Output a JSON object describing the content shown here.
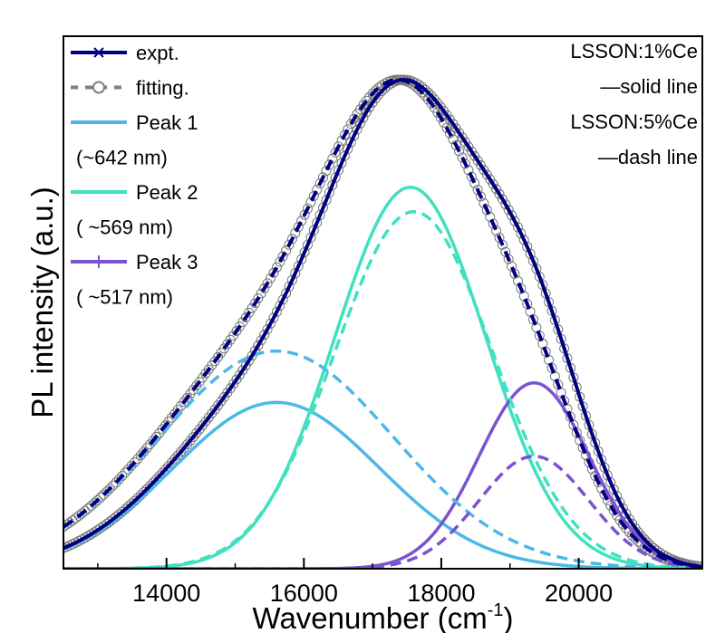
{
  "chart_data": {
    "type": "line",
    "xlabel": "Wavenumber (cm",
    "xlabel_sup": "-1",
    "xlabel_close": ")",
    "ylabel": "PL intensity (a.u.)",
    "xlim": [
      12500,
      21800
    ],
    "ylim": [
      0,
      1.0
    ],
    "x_ticks": [
      14000,
      16000,
      18000,
      20000
    ],
    "x_tick_labels": [
      "14000",
      "16000",
      "18000",
      "20000"
    ],
    "grid": false,
    "legend_position": "top-left",
    "legend": [
      {
        "label": "expt.",
        "style": "solid-marker-x",
        "color": "#000080"
      },
      {
        "label": "fitting.",
        "style": "dash-marker-o",
        "color": "#808080"
      },
      {
        "label": "Peak 1",
        "style": "solid",
        "color": "#4DB8E8"
      },
      {
        "label": "(~642 nm)",
        "style": "none",
        "color": "#000000"
      },
      {
        "label": "Peak 2",
        "style": "solid",
        "color": "#40E0C0"
      },
      {
        "label": "( ~569 nm)",
        "style": "none",
        "color": "#000000"
      },
      {
        "label": "Peak 3",
        "style": "solid-marker-plus",
        "color": "#7B52D0"
      },
      {
        "label": "( ~517 nm)",
        "style": "none",
        "color": "#000000"
      }
    ],
    "annotations": [
      {
        "text": "LSSON:1%Ce",
        "anchor": "top-right"
      },
      {
        "text": "—solid line",
        "anchor": "top-right"
      },
      {
        "text": "LSSON:5%Ce",
        "anchor": "top-right"
      },
      {
        "text": "—dash line",
        "anchor": "top-right"
      }
    ],
    "series": [
      {
        "sample": "LSSON:1%Ce",
        "component": "Peak 1",
        "dashed": false,
        "color": "#4DB8E8",
        "amplitude": 0.34,
        "center": 15600,
        "sigma": 1500
      },
      {
        "sample": "LSSON:1%Ce",
        "component": "Peak 2",
        "dashed": false,
        "color": "#40E0C0",
        "amplitude": 0.78,
        "center": 17550,
        "sigma": 1100
      },
      {
        "sample": "LSSON:1%Ce",
        "component": "Peak 3",
        "dashed": false,
        "color": "#7B52D0",
        "amplitude": 0.38,
        "center": 19350,
        "sigma": 800
      },
      {
        "sample": "LSSON:5%Ce",
        "component": "Peak 1",
        "dashed": true,
        "color": "#4DB8E8",
        "amplitude": 0.445,
        "center": 15600,
        "sigma": 1700
      },
      {
        "sample": "LSSON:5%Ce",
        "component": "Peak 2",
        "dashed": true,
        "color": "#40E0C0",
        "amplitude": 0.73,
        "center": 17600,
        "sigma": 1150
      },
      {
        "sample": "LSSON:5%Ce",
        "component": "Peak 3",
        "dashed": true,
        "color": "#7B52D0",
        "amplitude": 0.23,
        "center": 19350,
        "sigma": 800
      }
    ],
    "totals": [
      {
        "sample": "LSSON:1%Ce",
        "dashed": false,
        "color": "#000080",
        "peak_x": 17600,
        "peak_y": 1.0
      },
      {
        "sample": "LSSON:5%Ce",
        "dashed": true,
        "color": "#000080",
        "peak_x": 17300,
        "peak_y": 1.0
      }
    ]
  }
}
